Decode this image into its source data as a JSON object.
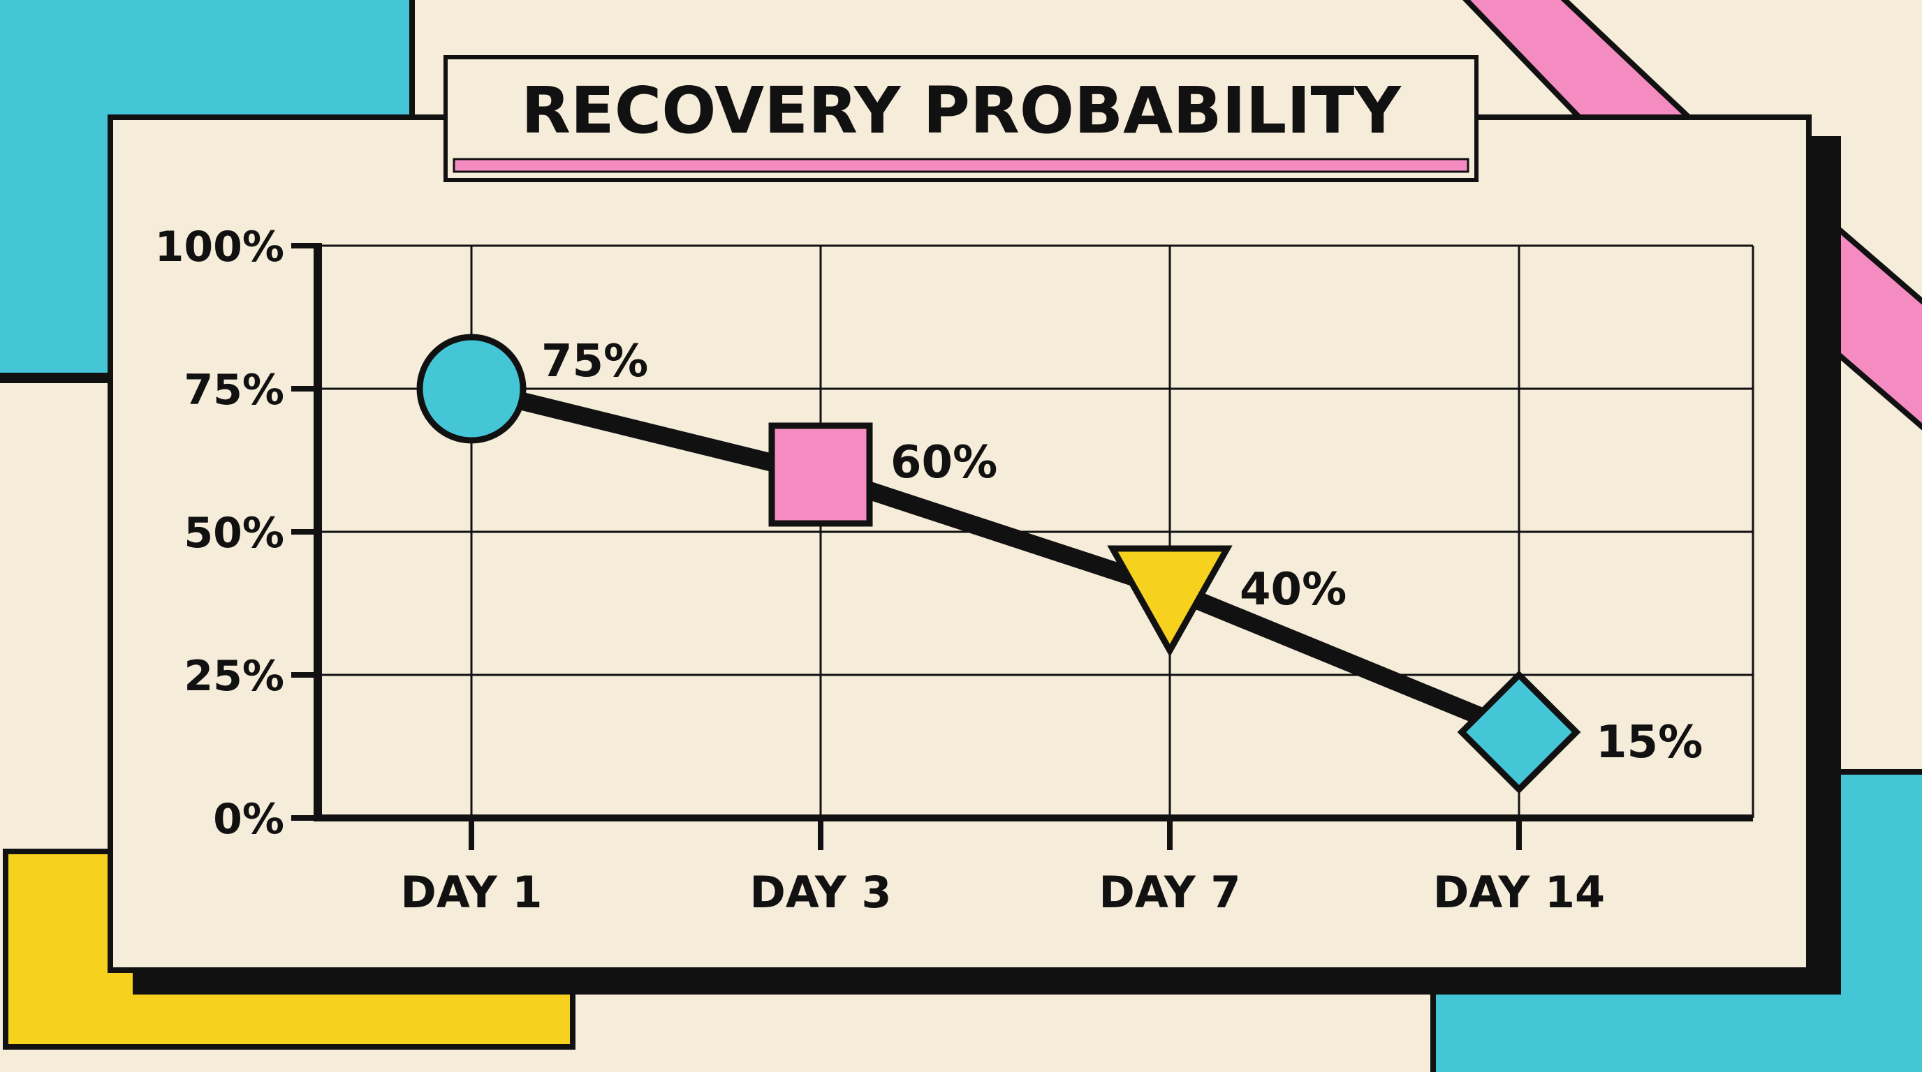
{
  "colors": {
    "background": "#f5ecd9",
    "panel": "#f5ecd9",
    "ink": "#111111",
    "cyan": "#45c6d6",
    "pink": "#f48cc2",
    "yellow": "#f6d21f"
  },
  "chart_data": {
    "type": "line",
    "title": "RECOVERY PROBABILITY",
    "xlabel": "",
    "ylabel": "",
    "categories": [
      "DAY 1",
      "DAY 3",
      "DAY 7",
      "DAY 14"
    ],
    "series": [
      {
        "values": [
          75,
          60,
          40,
          15
        ],
        "data_labels": [
          "75%",
          "60%",
          "40%",
          "15%"
        ],
        "markers": [
          "circle",
          "square",
          "triangle-down",
          "diamond"
        ],
        "marker_colors": [
          "#45c6d6",
          "#f48cc2",
          "#f6d21f",
          "#45c6d6"
        ]
      }
    ],
    "ylim": [
      0,
      100
    ],
    "yticks": [
      0,
      25,
      50,
      75,
      100
    ],
    "ytick_labels": [
      "0%",
      "25%",
      "50%",
      "75%",
      "100%"
    ],
    "grid": true,
    "legend": "none"
  }
}
